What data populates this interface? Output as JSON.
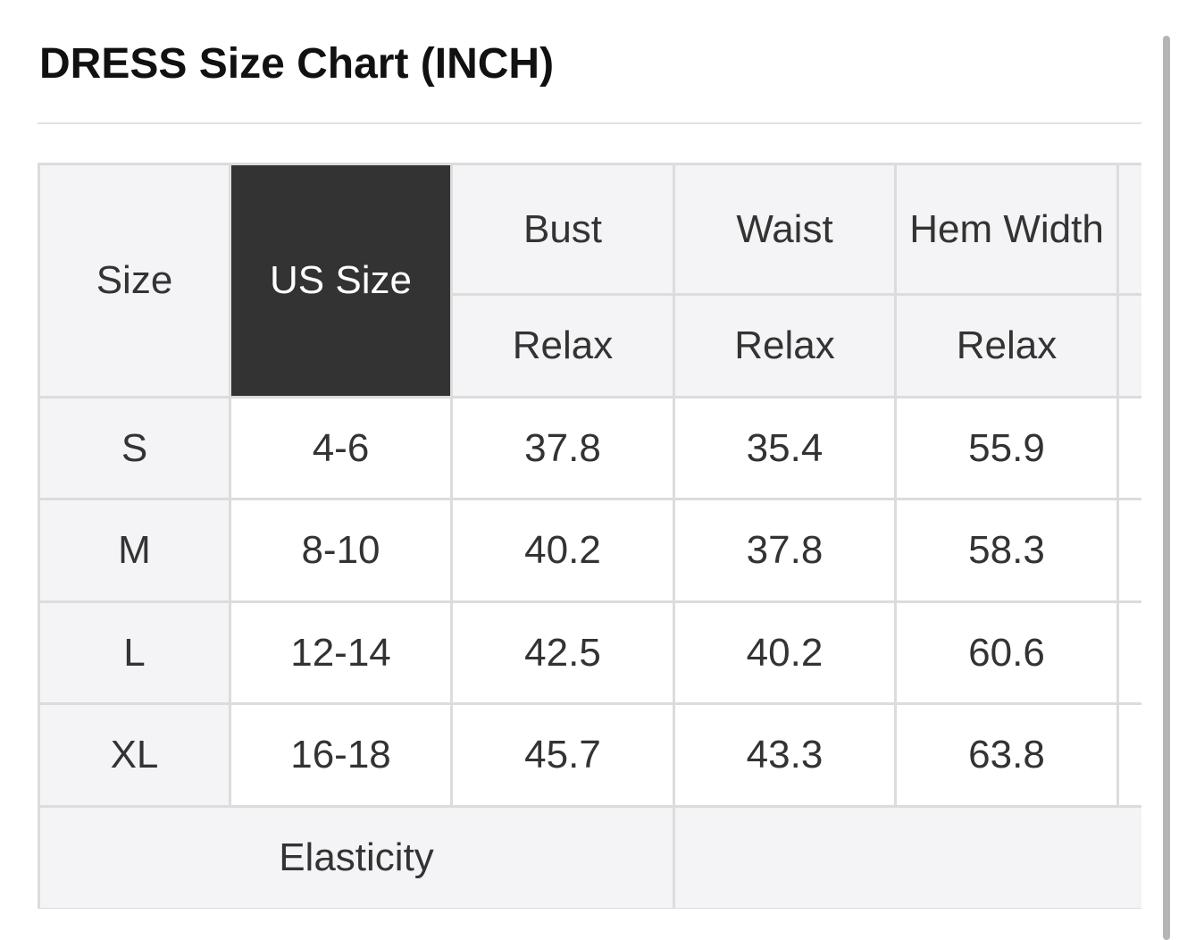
{
  "header": {
    "title": "DRESS Size Chart (INCH)"
  },
  "table": {
    "columns": [
      "Size",
      "US Size",
      "Bust",
      "Waist",
      "Hem Width"
    ],
    "subheaders": [
      "Relax",
      "Relax",
      "Relax"
    ],
    "rows": [
      [
        "S",
        "4-6",
        "37.8",
        "35.4",
        "55.9"
      ],
      [
        "M",
        "8-10",
        "40.2",
        "37.8",
        "58.3"
      ],
      [
        "L",
        "12-14",
        "42.5",
        "40.2",
        "60.6"
      ],
      [
        "XL",
        "16-18",
        "45.7",
        "43.3",
        "63.8"
      ]
    ],
    "footer": {
      "label": "Elasticity"
    }
  }
}
